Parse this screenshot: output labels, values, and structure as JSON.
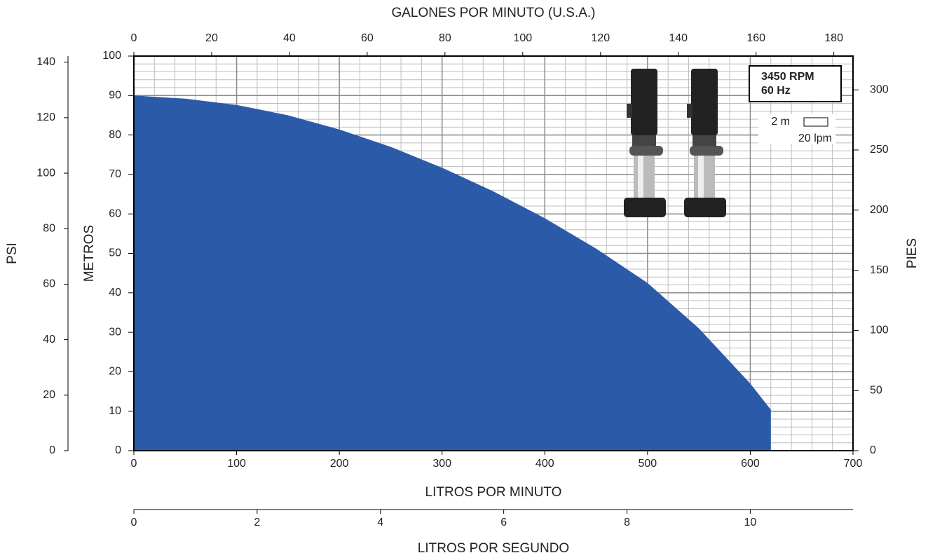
{
  "chart_data": {
    "type": "area",
    "color": "#2b5ba8",
    "grid": true,
    "xlabel": "LITROS POR MINUTO",
    "xlim": [
      0,
      700
    ],
    "xticks": [
      0,
      100,
      200,
      300,
      400,
      500,
      600,
      700
    ],
    "ylabel": "METROS",
    "ylim": [
      0,
      100
    ],
    "yticks": [
      0,
      10,
      20,
      30,
      40,
      50,
      60,
      70,
      80,
      90,
      100
    ],
    "x": [
      0,
      50,
      100,
      150,
      200,
      250,
      300,
      350,
      400,
      450,
      500,
      550,
      600,
      620
    ],
    "values": [
      90,
      89.2,
      87.6,
      85,
      81.4,
      77,
      71.7,
      65.7,
      58.9,
      51.2,
      42.5,
      31,
      17,
      10.4
    ],
    "grid_step": {
      "x": {
        "value": 20,
        "label": "20 lpm"
      },
      "y": {
        "value": 2,
        "label": "2 m"
      }
    },
    "annotations": [
      "3450 RPM",
      "60 Hz"
    ],
    "secondary_axes": [
      {
        "label": "GALONES POR MINUTO (U.S.A.)",
        "side": "top",
        "lim": [
          0,
          184.93
        ],
        "ticks": [
          0,
          20,
          40,
          60,
          80,
          100,
          120,
          140,
          160,
          180
        ]
      },
      {
        "label": "PSI",
        "side": "left",
        "lim": [
          0,
          142.2
        ],
        "ticks": [
          0,
          20,
          40,
          60,
          80,
          100,
          120,
          140
        ]
      },
      {
        "label": "PIES",
        "side": "right",
        "lim": [
          0,
          328.1
        ],
        "ticks": [
          0,
          50,
          100,
          150,
          200,
          250,
          300
        ]
      },
      {
        "label": "LITROS POR SEGUNDO",
        "side": "bottom",
        "lim": [
          0,
          11.667
        ],
        "ticks": [
          0,
          2,
          4,
          6,
          8,
          10
        ]
      }
    ]
  }
}
